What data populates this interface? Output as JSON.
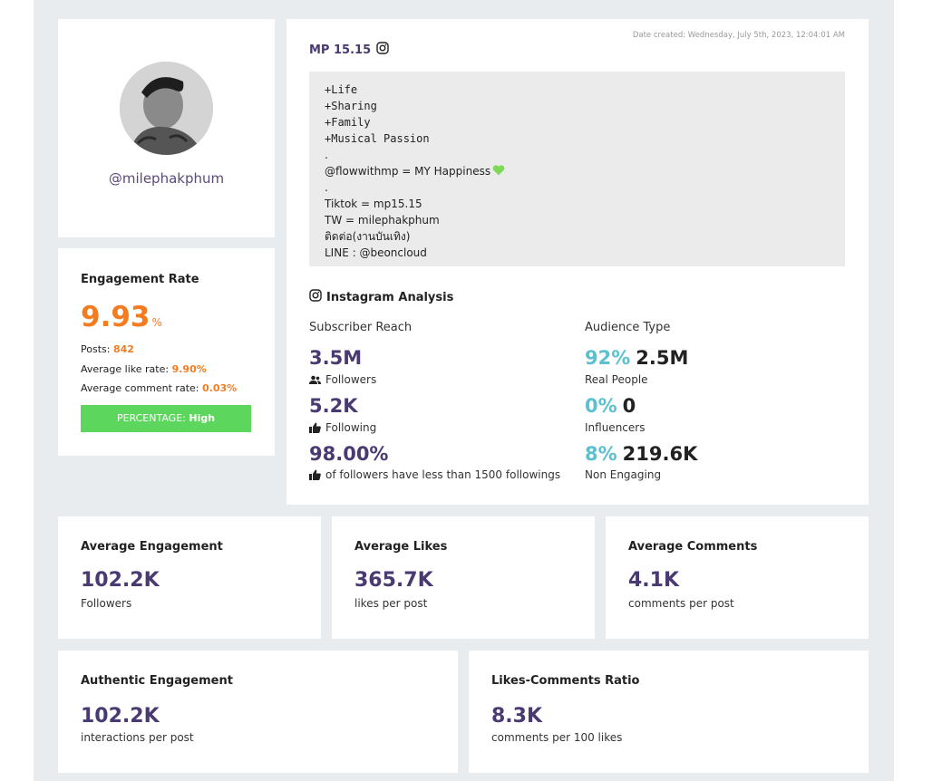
{
  "profile": {
    "username": "@milephakphum"
  },
  "engagement": {
    "title": "Engagement Rate",
    "rate": "9.93",
    "unit": "%",
    "posts_label": "Posts:",
    "posts_value": "842",
    "like_rate_label": "Average like rate:",
    "like_rate_value": "9.90%",
    "comment_rate_label": "Average comment rate:",
    "comment_rate_value": "0.03%",
    "percentage_label": "PERCENTAGE:",
    "percentage_value": "High"
  },
  "account": {
    "name": "MP 15.15",
    "date_created": "Date created: Wednesday, July 5th, 2023, 12:04:01 AM",
    "bio_mono": [
      "+Life",
      "+Sharing",
      "+Family",
      "+Musical Passion"
    ],
    "bio_dot1": ".",
    "bio_happiness": "@flowwithmp = MY Happiness",
    "bio_dot2": ".",
    "bio_tiktok": "Tiktok = mp15.15",
    "bio_tw": "TW = milephakphum",
    "bio_contact": "ติดต่อ(งานบันเทิง)",
    "bio_line": "LINE : @beoncloud"
  },
  "analysis": {
    "title": "Instagram Analysis",
    "reach_title": "Subscriber Reach",
    "followers_value": "3.5M",
    "followers_label": "Followers",
    "following_value": "5.2K",
    "following_label": "Following",
    "ratio_value": "98.00%",
    "ratio_label": "of followers have less than 1500 followings",
    "audience_title": "Audience Type",
    "real_pct": "92%",
    "real_value": "2.5M",
    "real_label": "Real People",
    "influencer_pct": "0%",
    "influencer_value": "0",
    "influencer_label": "Influencers",
    "nonengaging_pct": "8%",
    "nonengaging_value": "219.6K",
    "nonengaging_label": "Non Engaging"
  },
  "metrics": {
    "avg_engagement": {
      "title": "Average Engagement",
      "value": "102.2K",
      "sub": "Followers"
    },
    "avg_likes": {
      "title": "Average Likes",
      "value": "365.7K",
      "sub": "likes per post"
    },
    "avg_comments": {
      "title": "Average Comments",
      "value": "4.1K",
      "sub": "comments per post"
    },
    "auth_engagement": {
      "title": "Authentic Engagement",
      "value": "102.2K",
      "sub": "interactions per post"
    },
    "likes_ratio": {
      "title": "Likes-Comments Ratio",
      "value": "8.3K",
      "sub": "comments per 100 likes"
    }
  },
  "colors": {
    "accent_purple": "#4a3a72",
    "accent_orange": "#f47c20",
    "badge_green": "#5cd65c",
    "audience_teal": "#5bc0cf"
  },
  "icons": [
    "instagram-icon",
    "users-icon",
    "thumbs-up-icon",
    "green-heart-icon"
  ]
}
